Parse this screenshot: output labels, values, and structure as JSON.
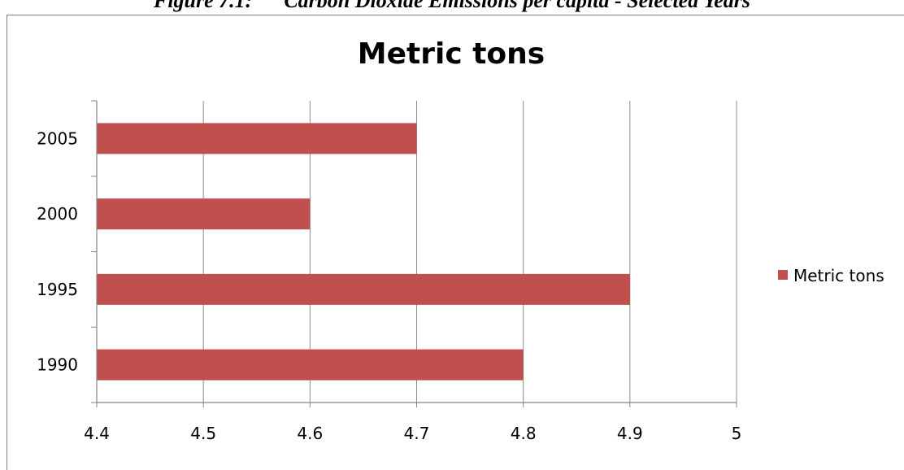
{
  "caption": "Figure 7.1:      Carbon Dioxide Emissions per capita - Selected Years",
  "colors": {
    "bar": "#c0504d",
    "grid": "#8c8c8c",
    "axis": "#868686"
  },
  "chart_data": {
    "type": "bar",
    "orientation": "horizontal",
    "title": "Metric tons",
    "categories": [
      "1990",
      "1995",
      "2000",
      "2005"
    ],
    "series": [
      {
        "name": "Metric tons",
        "values": [
          4.8,
          4.9,
          4.6,
          4.7
        ]
      }
    ],
    "xlim": [
      4.4,
      5.0
    ],
    "xticks": [
      "4.4",
      "4.5",
      "4.6",
      "4.7",
      "4.8",
      "4.9",
      "5"
    ],
    "grid": "vertical",
    "legend": "right"
  }
}
